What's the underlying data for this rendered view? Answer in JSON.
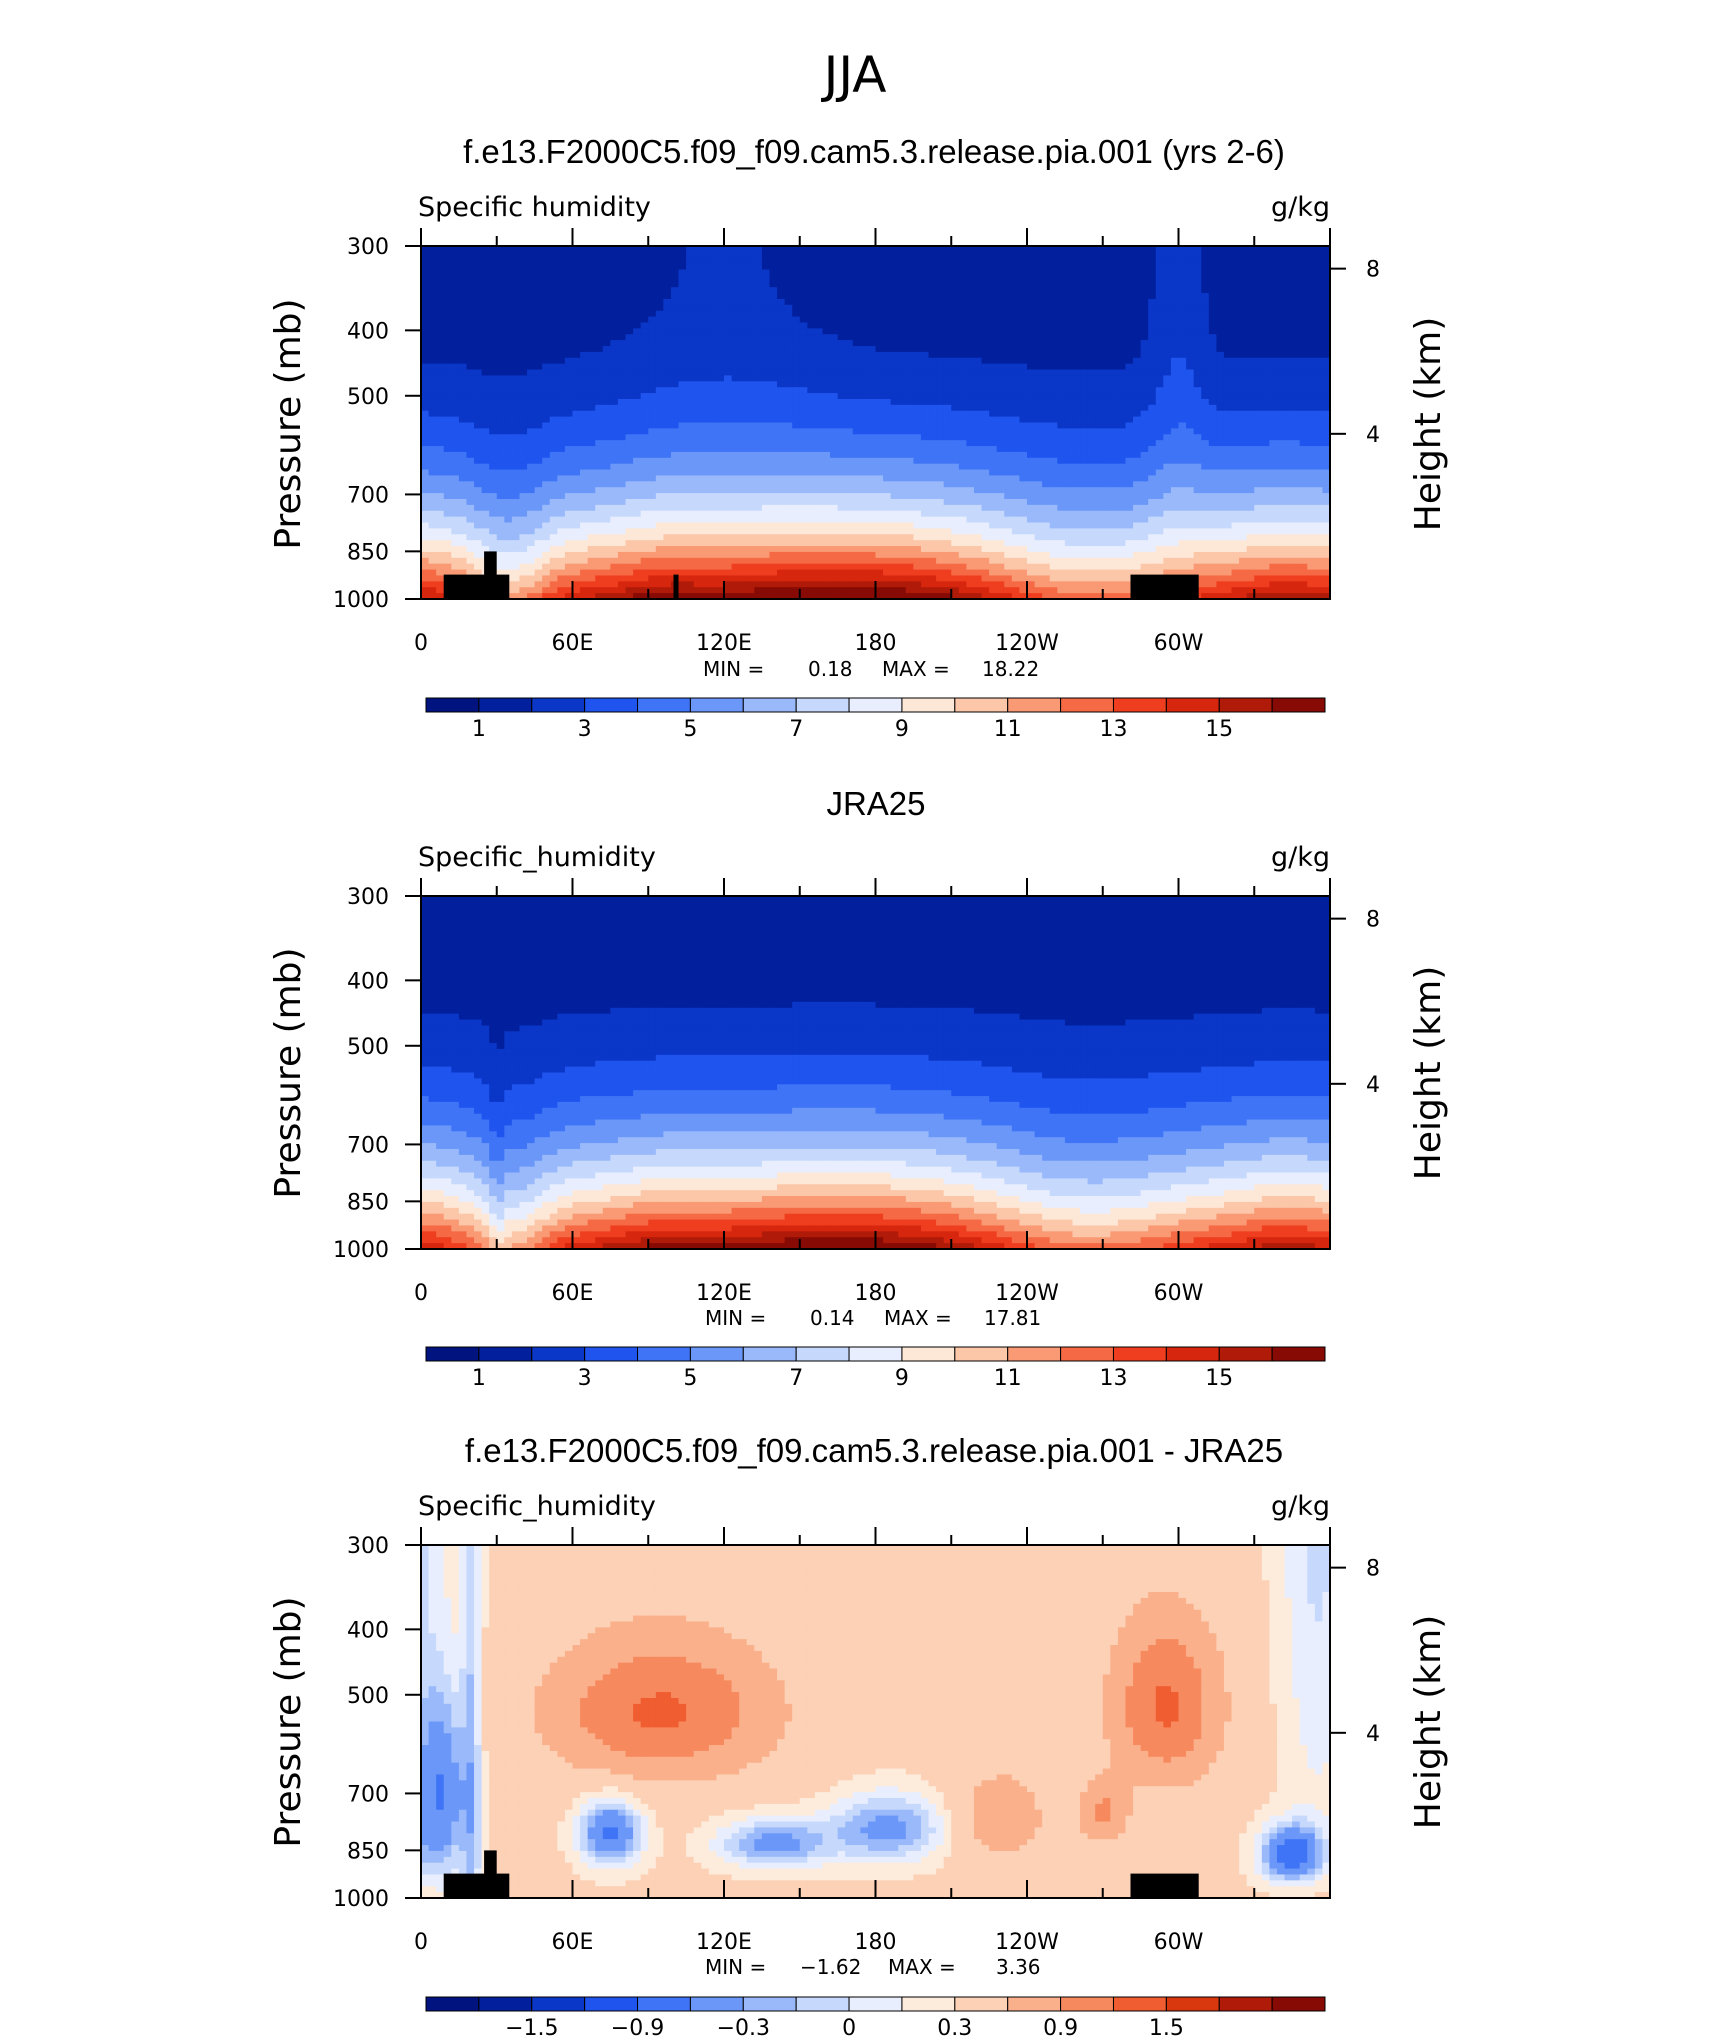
{
  "figure": {
    "title": "JJA",
    "colors": {
      "absolute_palette": [
        "#00137f",
        "#02209e",
        "#0b37c8",
        "#1f55ee",
        "#3e74f5",
        "#6b98f8",
        "#9ab9fa",
        "#c6d9fc",
        "#e8eefd",
        "#fde8d8",
        "#fcc6a8",
        "#f99a74",
        "#f56a45",
        "#ef3e1f",
        "#d7260e",
        "#b01a08",
        "#870a04"
      ],
      "diff_palette": [
        "#00137f",
        "#02209e",
        "#0b37c8",
        "#1f55ee",
        "#3e74f5",
        "#6b98f8",
        "#9ab9fa",
        "#c6d9fc",
        "#e8eefd",
        "#fdebdc",
        "#fcd1b6",
        "#fab08b",
        "#f68a5e",
        "#ef5d31",
        "#d9380f",
        "#b01a08",
        "#870a04"
      ],
      "topography": "#000000"
    }
  },
  "chart_data": [
    {
      "type": "heatmap",
      "title": "f.e13.F2000C5.f09_f09.cam5.3.release.pia.001 (yrs 2-6)",
      "left_label": "Specific humidity",
      "right_label": "g/kg",
      "ylabel": "Pressure (mb)",
      "ylabel_right": "Height (km)",
      "x_ticks": [
        "0",
        "60E",
        "120E",
        "180",
        "120W",
        "60W"
      ],
      "x_range": [
        0,
        360
      ],
      "y_ticks": [
        "300",
        "400",
        "500",
        "700",
        "850",
        "1000"
      ],
      "y_range": [
        1000,
        300
      ],
      "y_scale": "log",
      "y_right_ticks": [
        "8",
        "4"
      ],
      "min_label": "MIN =",
      "min_value": "0.18",
      "max_label": "MAX =",
      "max_value": "18.22",
      "colorbar_labels": [
        "1",
        "3",
        "5",
        "7",
        "9",
        "11",
        "13",
        "15"
      ],
      "colorbar_levels": [
        0,
        1,
        2,
        3,
        4,
        5,
        6,
        7,
        8,
        9,
        10,
        11,
        12,
        13,
        14,
        15,
        16
      ],
      "field": "model",
      "topography_blocks": [
        {
          "lon": [
            9,
            35
          ],
          "p_top": 920
        },
        {
          "lon": [
            25,
            30
          ],
          "p_top": 850
        },
        {
          "lon": [
            100,
            102
          ],
          "p_top": 920
        },
        {
          "lon": [
            281,
            308
          ],
          "p_top": 920
        }
      ]
    },
    {
      "type": "heatmap",
      "title": "JRA25",
      "left_label": "Specific_humidity",
      "right_label": "g/kg",
      "ylabel": "Pressure (mb)",
      "ylabel_right": "Height (km)",
      "x_ticks": [
        "0",
        "60E",
        "120E",
        "180",
        "120W",
        "60W"
      ],
      "x_range": [
        0,
        360
      ],
      "y_ticks": [
        "300",
        "400",
        "500",
        "700",
        "850",
        "1000"
      ],
      "y_range": [
        1000,
        300
      ],
      "y_scale": "log",
      "y_right_ticks": [
        "8",
        "4"
      ],
      "min_label": "MIN =",
      "min_value": "0.14",
      "max_label": "MAX =",
      "max_value": "17.81",
      "colorbar_labels": [
        "1",
        "3",
        "5",
        "7",
        "9",
        "11",
        "13",
        "15"
      ],
      "colorbar_levels": [
        0,
        1,
        2,
        3,
        4,
        5,
        6,
        7,
        8,
        9,
        10,
        11,
        12,
        13,
        14,
        15,
        16
      ],
      "field": "obs",
      "topography_blocks": []
    },
    {
      "type": "heatmap",
      "title": "f.e13.F2000C5.f09_f09.cam5.3.release.pia.001 - JRA25",
      "left_label": "Specific_humidity",
      "right_label": "g/kg",
      "ylabel": "Pressure (mb)",
      "ylabel_right": "Height (km)",
      "x_ticks": [
        "0",
        "60E",
        "120E",
        "180",
        "120W",
        "60W"
      ],
      "x_range": [
        0,
        360
      ],
      "y_ticks": [
        "300",
        "400",
        "500",
        "700",
        "850",
        "1000"
      ],
      "y_range": [
        1000,
        300
      ],
      "y_scale": "log",
      "y_right_ticks": [
        "8",
        "4"
      ],
      "min_label": "MIN =",
      "min_value": "−1.62",
      "max_label": "MAX =",
      "max_value": "3.36",
      "colorbar_labels": [
        "−1.5",
        "−0.9",
        "−0.3",
        "0",
        "0.3",
        "0.9",
        "1.5"
      ],
      "colorbar_levels": [
        -1.8,
        -1.5,
        -1.2,
        -0.9,
        -0.6,
        -0.3,
        -0.15,
        0,
        0.15,
        0.3,
        0.6,
        0.9,
        1.2,
        1.5,
        1.8,
        2.1
      ],
      "field": "diff",
      "topography_blocks": [
        {
          "lon": [
            9,
            35
          ],
          "p_top": 920
        },
        {
          "lon": [
            25,
            30
          ],
          "p_top": 850
        },
        {
          "lon": [
            281,
            308
          ],
          "p_top": 920
        }
      ]
    }
  ]
}
